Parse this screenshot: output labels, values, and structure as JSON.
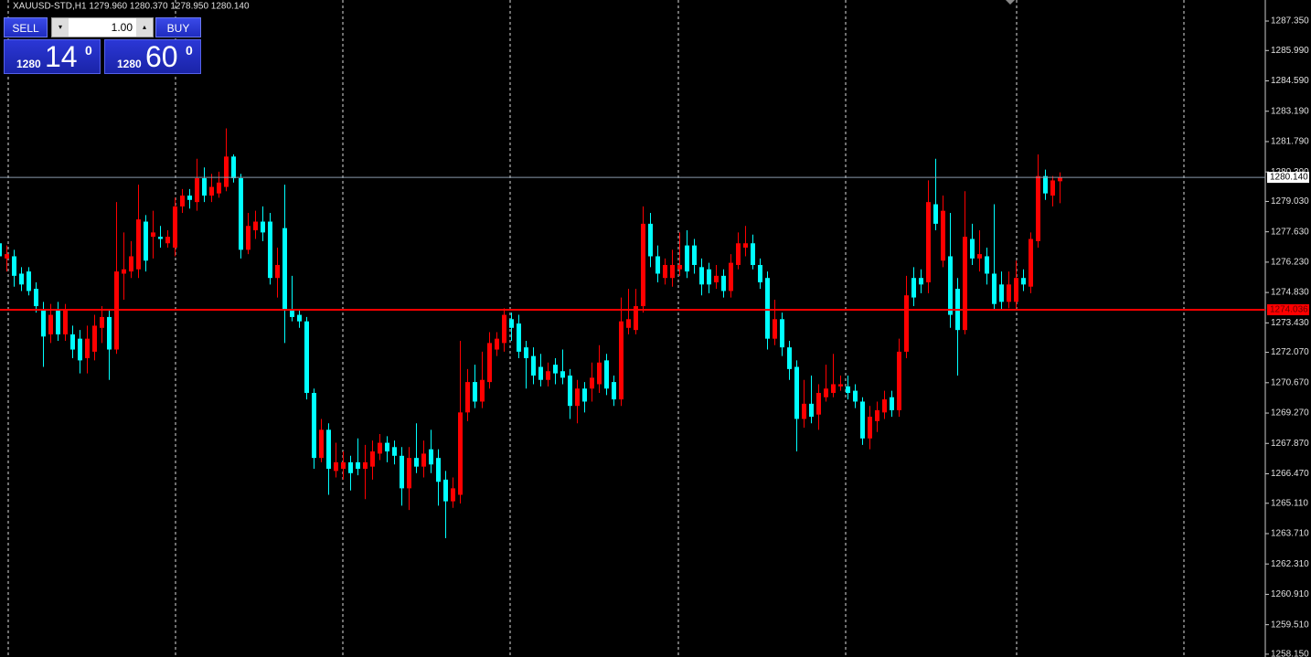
{
  "chart_data": {
    "type": "candlestick",
    "header": "XAUUSD-STD,H1  1279.960 1280.370 1278.950 1280.140",
    "up_color": "#ff0000",
    "down_color": "#00ffff",
    "open": [
      1277.1,
      1276.4,
      1276.5,
      1275.7,
      1275.8,
      1275.0,
      1274.0,
      1272.9,
      1274.0,
      1272.9,
      1272.9,
      1272.7,
      1271.8,
      1272.1,
      1273.2,
      1273.7,
      1272.2,
      1275.7,
      1275.8,
      1275.9,
      1278.1,
      1277.4,
      1277.4,
      1277.1,
      1276.9,
      1278.8,
      1279.3,
      1279.0,
      1280.1,
      1279.3,
      1279.4,
      1279.7,
      1281.1,
      1280.1,
      1276.8,
      1277.7,
      1278.1,
      1278.1,
      1275.5,
      1277.8,
      1274.0,
      1273.8,
      1273.5,
      1270.2,
      1267.2,
      1268.5,
      1266.6,
      1266.7,
      1267.0,
      1267.0,
      1266.7,
      1266.8,
      1267.4,
      1267.9,
      1267.7,
      1267.3,
      1265.8,
      1267.2,
      1266.8,
      1267.6,
      1267.2,
      1266.2,
      1265.2,
      1265.5,
      1269.3,
      1270.7,
      1269.8,
      1270.7,
      1272.2,
      1272.5,
      1273.6,
      1273.4,
      1272.3,
      1271.9,
      1271.4,
      1270.8,
      1271.5,
      1271.2,
      1271.0,
      1269.6,
      1270.4,
      1270.4,
      1270.6,
      1271.7,
      1270.7,
      1269.9,
      1273.2,
      1273.1,
      1274.2,
      1278.0,
      1276.5,
      1275.5,
      1275.5,
      1275.9,
      1277.0,
      1277.0,
      1276.0,
      1275.9,
      1275.3,
      1275.6,
      1274.9,
      1276.1,
      1276.9,
      1277.1,
      1276.1,
      1275.5,
      1272.7,
      1273.6,
      1272.3,
      1271.4,
      1269.0,
      1269.7,
      1269.2,
      1270.0,
      1270.2,
      1270.5,
      1270.5,
      1270.3,
      1269.8,
      1268.1,
      1268.9,
      1269.3,
      1270.0,
      1269.4,
      1272.1,
      1275.5,
      1275.5,
      1275.3,
      1278.9,
      1276.3,
      1276.5,
      1275.0,
      1273.1,
      1277.3,
      1276.4,
      1276.5,
      1275.7,
      1275.2,
      1274.4,
      1274.4,
      1275.5,
      1275.1,
      1277.2,
      1280.2,
      1279.3,
      1279.96
    ],
    "high": [
      1277.3,
      1277.0,
      1276.8,
      1276.0,
      1276.0,
      1275.3,
      1274.4,
      1274.3,
      1274.4,
      1274.3,
      1273.3,
      1273.1,
      1273.3,
      1273.8,
      1274.2,
      1274.0,
      1279.0,
      1277.6,
      1277.2,
      1279.8,
      1278.4,
      1278.6,
      1277.9,
      1277.7,
      1279.2,
      1279.6,
      1279.6,
      1281.0,
      1280.6,
      1280.3,
      1280.4,
      1282.4,
      1281.2,
      1280.3,
      1278.5,
      1278.6,
      1278.8,
      1278.5,
      1276.9,
      1279.8,
      1275.6,
      1274.0,
      1273.7,
      1270.4,
      1269.0,
      1268.8,
      1267.9,
      1267.5,
      1267.3,
      1268.1,
      1267.8,
      1268.0,
      1268.3,
      1268.2,
      1268.0,
      1267.7,
      1267.7,
      1268.8,
      1268.0,
      1268.5,
      1267.6,
      1266.6,
      1266.3,
      1272.6,
      1271.3,
      1271.5,
      1272.1,
      1273.0,
      1273.0,
      1274.1,
      1273.9,
      1273.8,
      1272.6,
      1272.3,
      1272.0,
      1271.6,
      1271.8,
      1272.2,
      1271.3,
      1270.8,
      1270.7,
      1271.6,
      1272.4,
      1272.0,
      1271.0,
      1274.6,
      1275.0,
      1275.0,
      1278.8,
      1278.5,
      1277.0,
      1276.4,
      1276.8,
      1277.6,
      1277.7,
      1277.3,
      1276.4,
      1276.2,
      1276.1,
      1275.9,
      1276.6,
      1277.6,
      1277.9,
      1277.5,
      1276.4,
      1275.8,
      1274.5,
      1273.9,
      1272.6,
      1271.7,
      1270.8,
      1271.0,
      1270.6,
      1271.5,
      1272.0,
      1271.0,
      1271.0,
      1270.6,
      1270.0,
      1269.6,
      1269.8,
      1270.3,
      1270.3,
      1272.7,
      1275.6,
      1276.0,
      1275.9,
      1280.0,
      1281.0,
      1279.3,
      1278.5,
      1275.5,
      1279.5,
      1278.0,
      1277.7,
      1276.9,
      1278.9,
      1275.8,
      1275.8,
      1276.3,
      1275.9,
      1277.6,
      1281.2,
      1280.5,
      1280.2,
      1280.37
    ],
    "low": [
      1276.2,
      1275.8,
      1275.1,
      1274.9,
      1274.7,
      1273.9,
      1271.4,
      1272.5,
      1272.6,
      1272.6,
      1271.8,
      1271.1,
      1271.1,
      1271.7,
      1272.5,
      1270.8,
      1272.0,
      1274.5,
      1275.5,
      1275.5,
      1275.8,
      1276.4,
      1276.9,
      1276.9,
      1276.5,
      1278.5,
      1278.7,
      1278.6,
      1279.0,
      1279.0,
      1279.2,
      1279.5,
      1279.9,
      1276.4,
      1276.6,
      1277.3,
      1277.2,
      1275.2,
      1274.6,
      1272.5,
      1273.5,
      1273.2,
      1269.9,
      1266.7,
      1267.0,
      1265.5,
      1266.3,
      1266.2,
      1265.7,
      1266.4,
      1265.3,
      1266.2,
      1267.1,
      1267.0,
      1266.9,
      1265.0,
      1264.8,
      1266.5,
      1266.3,
      1266.5,
      1265.0,
      1263.5,
      1264.9,
      1265.1,
      1268.9,
      1269.5,
      1269.5,
      1270.4,
      1271.9,
      1272.1,
      1272.6,
      1271.8,
      1270.4,
      1270.6,
      1270.5,
      1270.5,
      1270.6,
      1270.6,
      1269.0,
      1268.8,
      1269.3,
      1269.8,
      1270.2,
      1270.1,
      1269.6,
      1269.6,
      1272.9,
      1272.9,
      1273.9,
      1276.0,
      1275.3,
      1275.2,
      1275.1,
      1275.6,
      1275.5,
      1275.7,
      1274.7,
      1274.8,
      1275.0,
      1274.6,
      1274.6,
      1275.9,
      1276.5,
      1275.9,
      1275.0,
      1272.2,
      1272.4,
      1271.9,
      1270.8,
      1267.5,
      1268.6,
      1268.8,
      1268.5,
      1269.8,
      1270.0,
      1270.3,
      1269.9,
      1269.5,
      1267.8,
      1267.6,
      1268.4,
      1269.0,
      1269.1,
      1269.1,
      1271.8,
      1274.2,
      1274.8,
      1274.8,
      1277.7,
      1276.0,
      1273.2,
      1271.0,
      1272.9,
      1276.1,
      1275.8,
      1275.2,
      1274.0,
      1274.0,
      1274.1,
      1274.1,
      1274.9,
      1274.8,
      1276.9,
      1279.1,
      1278.8,
      1278.95
    ],
    "close": [
      1276.5,
      1276.6,
      1275.6,
      1275.2,
      1274.9,
      1274.2,
      1272.8,
      1273.8,
      1272.9,
      1274.0,
      1272.2,
      1271.7,
      1272.7,
      1273.3,
      1273.7,
      1272.2,
      1275.8,
      1275.9,
      1276.5,
      1278.2,
      1276.3,
      1277.6,
      1277.3,
      1277.4,
      1278.8,
      1279.3,
      1279.1,
      1280.1,
      1279.3,
      1279.7,
      1279.9,
      1281.1,
      1280.1,
      1276.8,
      1277.9,
      1278.1,
      1277.6,
      1275.5,
      1276.1,
      1274.0,
      1273.7,
      1273.5,
      1270.2,
      1267.2,
      1268.5,
      1266.7,
      1267.0,
      1267.0,
      1266.5,
      1266.7,
      1267.0,
      1267.5,
      1267.9,
      1267.5,
      1267.3,
      1265.8,
      1267.2,
      1266.8,
      1267.4,
      1266.9,
      1266.1,
      1265.2,
      1265.8,
      1269.3,
      1270.7,
      1269.8,
      1270.8,
      1272.5,
      1272.7,
      1273.8,
      1273.2,
      1272.1,
      1271.8,
      1271.0,
      1270.8,
      1271.2,
      1271.1,
      1270.9,
      1269.6,
      1270.4,
      1269.8,
      1270.9,
      1271.6,
      1270.4,
      1269.9,
      1273.5,
      1273.6,
      1274.2,
      1278.0,
      1276.5,
      1275.7,
      1276.1,
      1276.1,
      1276.1,
      1275.8,
      1276.1,
      1275.2,
      1275.2,
      1275.6,
      1274.9,
      1276.2,
      1277.1,
      1277.1,
      1276.1,
      1275.3,
      1272.7,
      1273.6,
      1272.3,
      1271.3,
      1269.0,
      1269.7,
      1269.1,
      1270.2,
      1270.4,
      1270.6,
      1270.6,
      1270.2,
      1269.8,
      1268.1,
      1269.1,
      1269.4,
      1269.9,
      1269.4,
      1272.1,
      1274.7,
      1274.6,
      1275.2,
      1279.0,
      1278.0,
      1278.6,
      1273.8,
      1273.1,
      1277.4,
      1276.4,
      1276.6,
      1275.7,
      1274.3,
      1274.4,
      1275.2,
      1275.5,
      1275.2,
      1277.3,
      1280.2,
      1279.4,
      1280.0,
      1280.14
    ],
    "ylim": [
      1258.02,
      1288.32
    ],
    "yticks": [
      {
        "value": 1287.35,
        "label": "1287.350"
      },
      {
        "value": 1285.99,
        "label": "1285.990"
      },
      {
        "value": 1284.59,
        "label": "1284.590"
      },
      {
        "value": 1283.19,
        "label": "1283.190"
      },
      {
        "value": 1281.79,
        "label": "1281.790"
      },
      {
        "value": 1280.39,
        "label": "1280.390"
      },
      {
        "value": 1279.03,
        "label": "1279.030"
      },
      {
        "value": 1277.63,
        "label": "1277.630"
      },
      {
        "value": 1276.23,
        "label": "1276.230"
      },
      {
        "value": 1274.83,
        "label": "1274.830"
      },
      {
        "value": 1273.43,
        "label": "1273.430"
      },
      {
        "value": 1272.07,
        "label": "1272.070"
      },
      {
        "value": 1270.67,
        "label": "1270.670"
      },
      {
        "value": 1269.27,
        "label": "1269.270"
      },
      {
        "value": 1267.87,
        "label": "1267.870"
      },
      {
        "value": 1266.47,
        "label": "1266.470"
      },
      {
        "value": 1265.11,
        "label": "1265.110"
      },
      {
        "value": 1263.71,
        "label": "1263.710"
      },
      {
        "value": 1262.31,
        "label": "1262.310"
      },
      {
        "value": 1260.91,
        "label": "1260.910"
      },
      {
        "value": 1259.51,
        "label": "1259.510"
      },
      {
        "value": 1258.15,
        "label": "1258.150"
      }
    ],
    "bid": {
      "value": 1280.14,
      "label": "1280.140"
    },
    "level": {
      "value": 1274.036,
      "label": "1274.036"
    },
    "trade_panel": {
      "sell_label": "SELL",
      "buy_label": "BUY",
      "lot": "1.00",
      "sell_price": {
        "prefix": "1280",
        "digits": "14",
        "sup": "0"
      },
      "buy_price": {
        "prefix": "1280",
        "digits": "60",
        "sup": "0"
      }
    }
  }
}
